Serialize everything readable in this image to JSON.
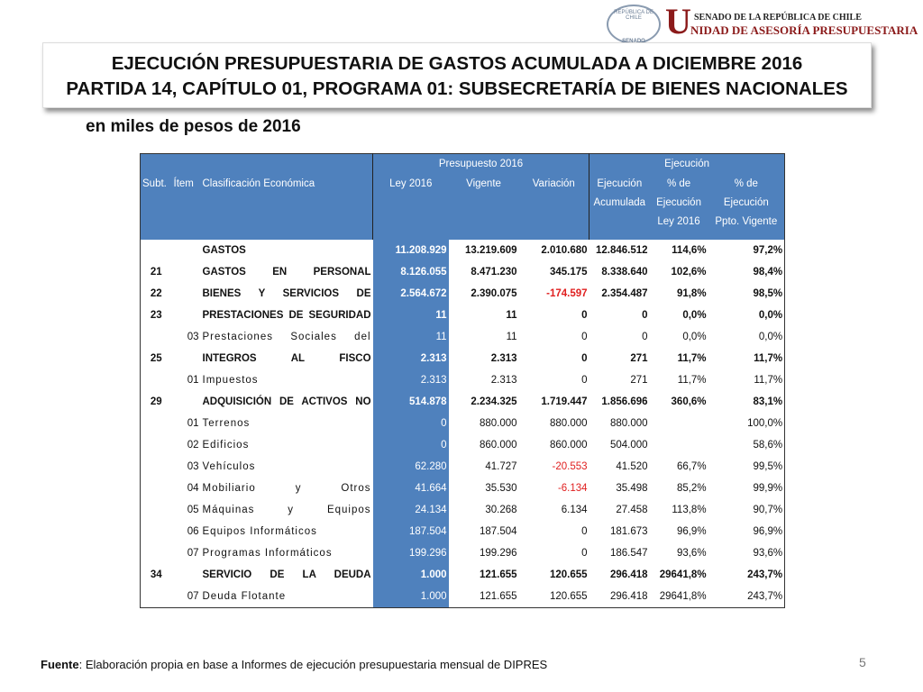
{
  "header": {
    "seal_top": "REPÚBLICA DE CHILE",
    "seal_bottom": "SENADO",
    "org_line1": "SENADO DE LA REPÚBLICA DE CHILE",
    "org_initial": "U",
    "org_line2": "NIDAD DE ASESORÍA PRESUPUESTARIA"
  },
  "title": [
    "EJECUCIÓN PRESUPUESTARIA DE GASTOS ACUMULADA A DICIEMBRE 2016",
    "PARTIDA 14, CAPÍTULO 01, PROGRAMA 01: SUBSECRETARÍA DE BIENES NACIONALES"
  ],
  "subtitle": "en miles de pesos de 2016",
  "table": {
    "groups": [
      "Presupuesto 2016",
      "Ejecución"
    ],
    "columns": [
      [
        "Subt."
      ],
      [
        "Ítem"
      ],
      [
        "Clasificación Económica"
      ],
      [
        "Ley 2016"
      ],
      [
        "Vigente"
      ],
      [
        "Variación"
      ],
      [
        "Ejecución",
        "Acumulada"
      ],
      [
        "% de",
        "Ejecución",
        "Ley 2016"
      ],
      [
        "% de",
        "Ejecución",
        "Ppto. Vigente"
      ]
    ],
    "rows": [
      [
        null,
        null,
        "GASTOS",
        "11.208.929",
        "13.219.609",
        "2.010.680",
        "12.846.512",
        "114,6%",
        "97,2%"
      ],
      [
        "21",
        null,
        "GASTOS EN PERSONAL",
        "8.126.055",
        "8.471.230",
        "345.175",
        "8.338.640",
        "102,6%",
        "98,4%"
      ],
      [
        "22",
        null,
        "BIENES Y SERVICIOS DE",
        "2.564.672",
        "2.390.075",
        "-174.597",
        "2.354.487",
        "91,8%",
        "98,5%"
      ],
      [
        "23",
        null,
        "PRESTACIONES DE SEGURIDAD",
        "11",
        "11",
        "0",
        "0",
        "0,0%",
        "0,0%"
      ],
      [
        null,
        "03",
        "Prestaciones Sociales del",
        "11",
        "11",
        "0",
        "0",
        "0,0%",
        "0,0%"
      ],
      [
        "25",
        null,
        "INTEGROS AL FISCO",
        "2.313",
        "2.313",
        "0",
        "271",
        "11,7%",
        "11,7%"
      ],
      [
        null,
        "01",
        "Impuestos",
        "2.313",
        "2.313",
        "0",
        "271",
        "11,7%",
        "11,7%"
      ],
      [
        "29",
        null,
        "ADQUISICIÓN DE ACTIVOS NO",
        "514.878",
        "2.234.325",
        "1.719.447",
        "1.856.696",
        "360,6%",
        "83,1%"
      ],
      [
        null,
        "01",
        "Terrenos",
        "0",
        "880.000",
        "880.000",
        "880.000",
        null,
        "100,0%"
      ],
      [
        null,
        "02",
        "Edificios",
        "0",
        "860.000",
        "860.000",
        "504.000",
        null,
        "58,6%"
      ],
      [
        null,
        "03",
        "Vehículos",
        "62.280",
        "41.727",
        "-20.553",
        "41.520",
        "66,7%",
        "99,5%"
      ],
      [
        null,
        "04",
        "Mobiliario y Otros",
        "41.664",
        "35.530",
        "-6.134",
        "35.498",
        "85,2%",
        "99,9%"
      ],
      [
        null,
        "05",
        "Máquinas y Equipos",
        "24.134",
        "30.268",
        "6.134",
        "27.458",
        "113,8%",
        "90,7%"
      ],
      [
        null,
        "06",
        "Equipos Informáticos",
        "187.504",
        "187.504",
        "0",
        "181.673",
        "96,9%",
        "96,9%"
      ],
      [
        null,
        "07",
        "Programas Informáticos",
        "199.296",
        "199.296",
        "0",
        "186.547",
        "93,6%",
        "93,6%"
      ],
      [
        "34",
        null,
        "SERVICIO DE LA DEUDA",
        "1.000",
        "121.655",
        "120.655",
        "296.418",
        "29641,8%",
        "243,7%"
      ],
      [
        null,
        "07",
        "Deuda Flotante",
        "1.000",
        "121.655",
        "120.655",
        "296.418",
        "29641,8%",
        "243,7%"
      ]
    ]
  },
  "footer": {
    "label": "Fuente",
    "text": ": Elaboración propia en base  a Informes de ejecución presupuestaria mensual de DIPRES"
  },
  "page_number": "5"
}
